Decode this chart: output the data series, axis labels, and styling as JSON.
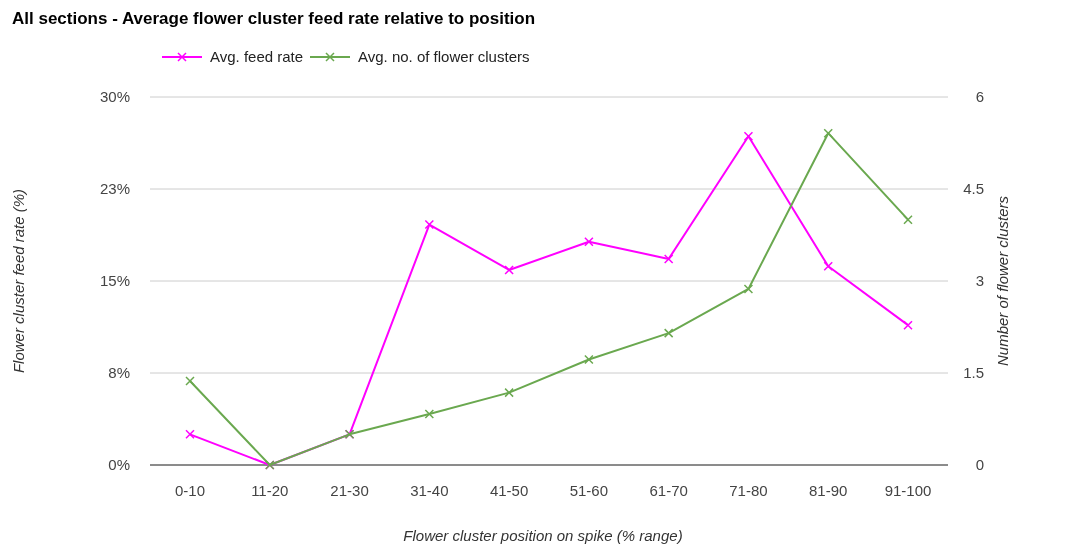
{
  "chart_data": {
    "type": "line",
    "title": "All sections - Average flower cluster feed rate relative to position",
    "xlabel": "Flower cluster position on spike (% range)",
    "ylabel": "Flower cluster feed rate (%)",
    "y2label": "Number of flower clusters",
    "categories": [
      "0-10",
      "11-20",
      "21-30",
      "31-40",
      "41-50",
      "51-60",
      "61-70",
      "71-80",
      "81-90",
      "91-100"
    ],
    "series": [
      {
        "name": "Avg. feed rate",
        "color": "#ff00ff",
        "values": [
          2.5,
          0,
          2.5,
          19.6,
          15.9,
          18.2,
          16.8,
          26.8,
          16.2,
          11.4
        ]
      },
      {
        "name": "Avg. no. of flower clusters",
        "color": "#6aa84f",
        "axis": "y2",
        "values": [
          1.37,
          0,
          0.5,
          0.83,
          1.18,
          1.72,
          2.15,
          2.87,
          5.41,
          4.0
        ]
      }
    ],
    "ylim": [
      0,
      30
    ],
    "yticks": [
      {
        "value": 0,
        "label": "0%"
      },
      {
        "value": 7.5,
        "label": "8%"
      },
      {
        "value": 15,
        "label": "15%"
      },
      {
        "value": 22.5,
        "label": "23%"
      },
      {
        "value": 30,
        "label": "30%"
      }
    ],
    "y2lim": [
      0,
      6
    ],
    "y2ticks": [
      0,
      1.5,
      3,
      4.5,
      6
    ],
    "grid": "y",
    "legend": "top left",
    "marker": "cross",
    "line_style": "solid"
  }
}
